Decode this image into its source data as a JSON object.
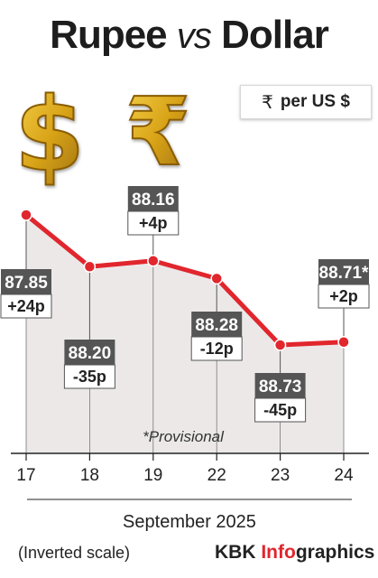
{
  "title_main": "Rupee",
  "title_vs": "vs",
  "title_end": "Dollar",
  "unit_symbol": "₹",
  "unit_text": "per US $",
  "colors": {
    "line": "#e1262d",
    "point": "#e1262d",
    "area": "#ece8e8",
    "label_value_bg": "#555555",
    "label_change_bg": "#ffffff",
    "coin_gold": "#d9a419"
  },
  "icons": [
    "dollar-sign-icon",
    "rupee-sign-icon"
  ],
  "chart_data": {
    "type": "line",
    "title": "Rupee vs Dollar",
    "ylabel": "₹ per US $",
    "xlabel": "September 2025",
    "inverted_y": true,
    "categories": [
      "17",
      "18",
      "19",
      "22",
      "23",
      "24"
    ],
    "values": [
      87.85,
      88.2,
      88.16,
      88.28,
      88.73,
      88.71
    ],
    "value_labels": [
      "87.85",
      "88.20",
      "88.16",
      "88.28",
      "88.73",
      "88.71*"
    ],
    "change_labels": [
      "+24p",
      "-35p",
      "+4p",
      "-12p",
      "-45p",
      "+2p"
    ],
    "ylim": [
      87.8,
      88.8
    ],
    "grid": false,
    "annotation": "*Provisional"
  },
  "axis_note": "(Inverted scale)",
  "brand_main": "KBK ",
  "brand_accent": "Info",
  "brand_rest": "graphics"
}
